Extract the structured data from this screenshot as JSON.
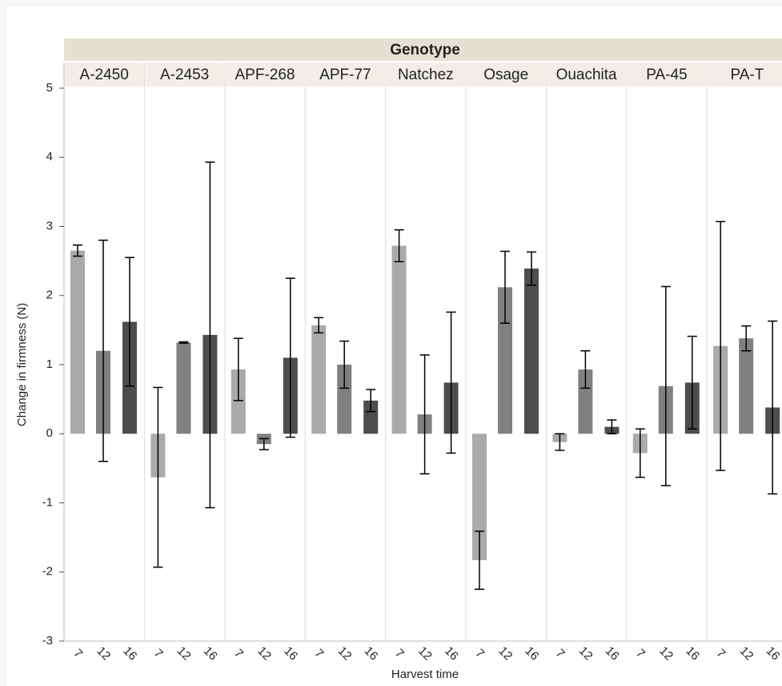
{
  "chart_data": {
    "type": "bar",
    "facet_label": "Genotype",
    "x_label": "Harvest time",
    "y_label": "Change in firmness (N)",
    "categories": [
      "A-2450",
      "A-2453",
      "APF-268",
      "APF-77",
      "Natchez",
      "Osage",
      "Ouachita",
      "PA-45",
      "PA-T"
    ],
    "series": [
      {
        "name": "7",
        "color": "#aaaaaa",
        "values": [
          2.65,
          -0.63,
          0.93,
          1.57,
          2.72,
          -1.83,
          -0.12,
          -0.28,
          1.27
        ],
        "errors": [
          0.08,
          1.3,
          0.45,
          0.11,
          0.23,
          0.42,
          0.12,
          0.35,
          1.8
        ]
      },
      {
        "name": "12",
        "color": "#808080",
        "values": [
          1.2,
          1.32,
          -0.15,
          1.0,
          0.28,
          2.12,
          0.93,
          0.69,
          1.38
        ],
        "errors": [
          1.6,
          0.01,
          0.08,
          0.34,
          0.86,
          0.52,
          0.27,
          1.44,
          0.18
        ]
      },
      {
        "name": "16",
        "color": "#4d4d4d",
        "values": [
          1.62,
          1.43,
          1.1,
          0.48,
          0.74,
          2.39,
          0.1,
          0.74,
          0.38
        ],
        "errors": [
          0.93,
          2.5,
          1.15,
          0.16,
          1.02,
          0.24,
          0.1,
          0.67,
          1.25
        ]
      }
    ],
    "ylim": [
      -3,
      5
    ],
    "yticks": [
      -3,
      -2,
      -1,
      0,
      1,
      2,
      3,
      4,
      5
    ],
    "grid": false
  }
}
